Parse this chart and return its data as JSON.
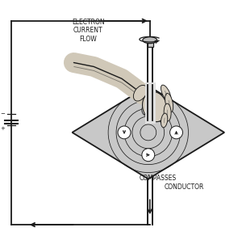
{
  "bg_color": "#ffffff",
  "line_color": "#1a1a1a",
  "title": "ELECTRON\nCURRENT\nFLOW",
  "conductor_label": "CONDUCTOR",
  "compasses_label": "COMPASSES",
  "fig_width": 3.0,
  "fig_height": 2.97,
  "dpi": 100
}
